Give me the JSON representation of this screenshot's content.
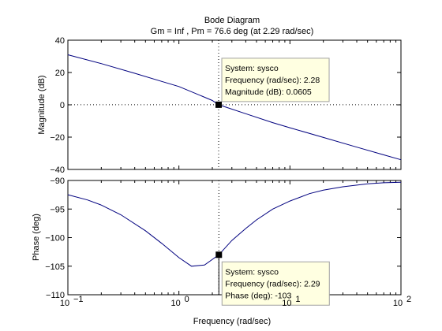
{
  "chart_data": {
    "type": "line",
    "title": "Bode Diagram",
    "subtitle": "Gm = Inf ,  Pm = 76.6 deg (at 2.29 rad/sec)",
    "xlabel": "Frequency  (rad/sec)",
    "x_scale": "log",
    "xlim": [
      0.1,
      100
    ],
    "x_ticks": [
      {
        "value": 0.1,
        "base": "10",
        "exp": "-1"
      },
      {
        "value": 1,
        "base": "10",
        "exp": "0"
      },
      {
        "value": 10,
        "base": "10",
        "exp": "1"
      },
      {
        "value": 100,
        "base": "10",
        "exp": "2"
      }
    ],
    "grid": false,
    "line_color": "#00007f",
    "subplots": [
      {
        "name": "magnitude",
        "ylabel": "Magnitude (dB)",
        "ylim": [
          -40,
          40
        ],
        "y_ticks": [
          40,
          20,
          0,
          -20,
          -40
        ],
        "series": [
          {
            "x": [
              0.1,
              0.2,
              0.4,
              0.7,
              1,
              2,
              2.28,
              4,
              7,
              10,
              20,
              40,
              70,
              100
            ],
            "y": [
              31,
              25.5,
              19.5,
              14.5,
              11.3,
              2.7,
              0.0605,
              -5.5,
              -11,
              -14.2,
              -20.2,
              -26.2,
              -31,
              -34
            ]
          }
        ],
        "datatip": {
          "x": 2.28,
          "y": 0.0605,
          "lines": [
            "System: sysco",
            "Frequency (rad/sec): 2.28",
            "Magnitude (dB): 0.0605"
          ]
        }
      },
      {
        "name": "phase",
        "ylabel": "Phase (deg)",
        "ylim": [
          -110,
          -90
        ],
        "y_ticks": [
          -90,
          -95,
          -100,
          -105,
          -110
        ],
        "series": [
          {
            "x": [
              0.1,
              0.15,
              0.2,
              0.3,
              0.5,
              0.7,
              1,
              1.3,
              1.7,
              2.29,
              3,
              4,
              5,
              7,
              10,
              15,
              20,
              30,
              50,
              70,
              100
            ],
            "y": [
              -92.5,
              -93.4,
              -94.3,
              -96.0,
              -98.8,
              -101.0,
              -103.5,
              -105.0,
              -104.8,
              -103,
              -100.5,
              -98.4,
              -96.9,
              -95.0,
              -93.6,
              -92.3,
              -91.7,
              -91.1,
              -90.6,
              -90.4,
              -90.3
            ]
          }
        ],
        "datatip": {
          "x": 2.29,
          "y": -103,
          "lines": [
            "System: sysco",
            "Frequency (rad/sec): 2.29",
            "Phase (deg): -103"
          ]
        }
      }
    ]
  }
}
